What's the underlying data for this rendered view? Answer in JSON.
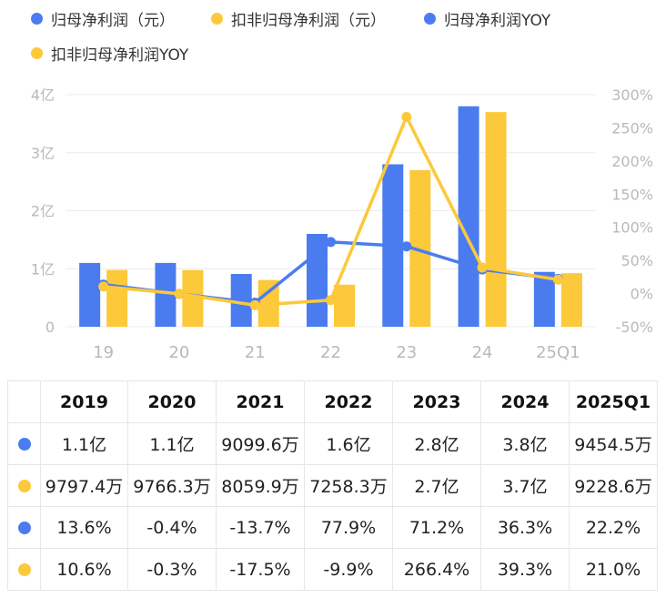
{
  "chart_data": {
    "type": "bar",
    "categories": [
      "19",
      "20",
      "21",
      "22",
      "23",
      "24",
      "25Q1"
    ],
    "left_axis": {
      "ticks": [
        "0",
        "1亿",
        "2亿",
        "3亿",
        "4亿"
      ],
      "ylim": [
        0,
        4
      ]
    },
    "right_axis": {
      "ticks": [
        "-50%",
        "0%",
        "50%",
        "100%",
        "150%",
        "200%",
        "250%",
        "300%"
      ],
      "ylim": [
        -50,
        300
      ]
    },
    "grid": true,
    "legend_position": "top-left",
    "series": [
      {
        "name": "归母净利润（元）",
        "type": "bar",
        "axis": "left",
        "color": "#4a7cf0",
        "values": [
          1.1,
          1.1,
          0.90996,
          1.6,
          2.8,
          3.8,
          0.94545
        ]
      },
      {
        "name": "扣非归母净利润（元）",
        "type": "bar",
        "axis": "left",
        "color": "#fcc93a",
        "values": [
          0.97974,
          0.97663,
          0.80599,
          0.72583,
          2.7,
          3.7,
          0.92286
        ]
      },
      {
        "name": "归母净利润YOY",
        "type": "line",
        "axis": "right",
        "color": "#4a7cf0",
        "values": [
          13.6,
          -0.4,
          -13.7,
          77.9,
          71.2,
          36.3,
          22.2
        ]
      },
      {
        "name": "扣非归母净利润YOY",
        "type": "line",
        "axis": "right",
        "color": "#fcc93a",
        "values": [
          10.6,
          -0.3,
          -17.5,
          -9.9,
          266.4,
          39.3,
          21.0
        ]
      }
    ]
  },
  "table": {
    "headers": [
      "",
      "2019",
      "2020",
      "2021",
      "2022",
      "2023",
      "2024",
      "2025Q1"
    ],
    "rows": [
      {
        "marker_color": "#4a7cf0",
        "cells": [
          "1.1亿",
          "1.1亿",
          "9099.6万",
          "1.6亿",
          "2.8亿",
          "3.8亿",
          "9454.5万"
        ]
      },
      {
        "marker_color": "#fcc93a",
        "cells": [
          "9797.4万",
          "9766.3万",
          "8059.9万",
          "7258.3万",
          "2.7亿",
          "3.7亿",
          "9228.6万"
        ]
      },
      {
        "marker_color": "#4a7cf0",
        "cells": [
          "13.6%",
          "-0.4%",
          "-13.7%",
          "77.9%",
          "71.2%",
          "36.3%",
          "22.2%"
        ]
      },
      {
        "marker_color": "#fcc93a",
        "cells": [
          "10.6%",
          "-0.3%",
          "-17.5%",
          "-9.9%",
          "266.4%",
          "39.3%",
          "21.0%"
        ]
      }
    ]
  }
}
